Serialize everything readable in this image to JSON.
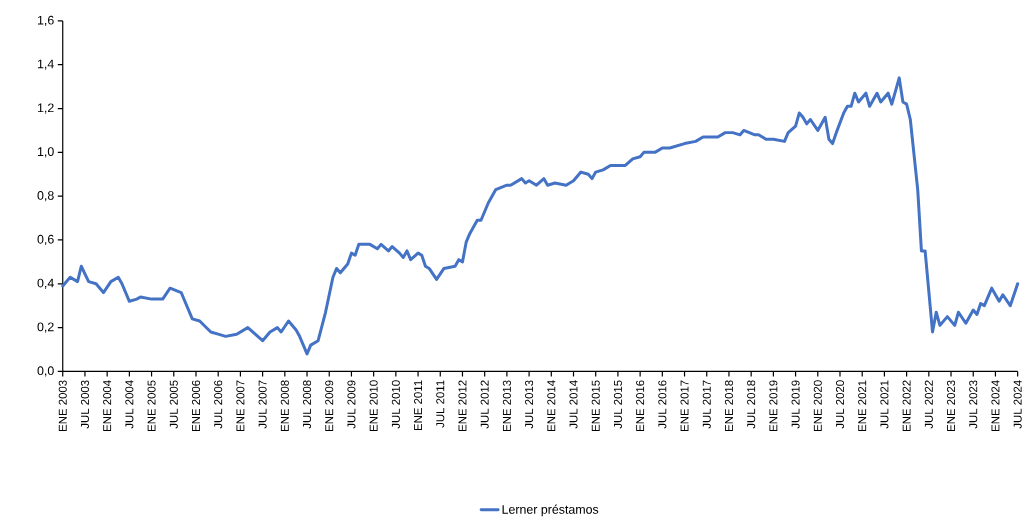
{
  "chart_data": {
    "type": "line",
    "x": [
      "2003-01",
      "2003-03",
      "2003-05",
      "2003-06",
      "2003-08",
      "2003-10",
      "2003-12",
      "2004-02",
      "2004-04",
      "2004-05",
      "2004-07",
      "2004-09",
      "2004-10",
      "2005-01",
      "2005-04",
      "2005-06",
      "2005-09",
      "2005-12",
      "2006-02",
      "2006-05",
      "2006-07",
      "2006-09",
      "2006-12",
      "2007-03",
      "2007-05",
      "2007-07",
      "2007-09",
      "2007-11",
      "2007-12",
      "2008-02",
      "2008-04",
      "2008-05",
      "2008-07",
      "2008-08",
      "2008-10",
      "2008-12",
      "2009-02",
      "2009-03",
      "2009-04",
      "2009-06",
      "2009-07",
      "2009-08",
      "2009-09",
      "2009-12",
      "2010-02",
      "2010-03",
      "2010-05",
      "2010-06",
      "2010-08",
      "2010-09",
      "2010-10",
      "2010-11",
      "2011-01",
      "2011-02",
      "2011-03",
      "2011-04",
      "2011-06",
      "2011-08",
      "2011-11",
      "2011-12",
      "2012-01",
      "2012-02",
      "2012-03",
      "2012-05",
      "2012-06",
      "2012-08",
      "2012-10",
      "2013-01",
      "2013-02",
      "2013-05",
      "2013-06",
      "2013-07",
      "2013-09",
      "2013-11",
      "2013-12",
      "2014-02",
      "2014-05",
      "2014-07",
      "2014-09",
      "2014-11",
      "2014-12",
      "2015-01",
      "2015-03",
      "2015-05",
      "2015-08",
      "2015-09",
      "2015-11",
      "2016-01",
      "2016-02",
      "2016-05",
      "2016-07",
      "2016-09",
      "2017-01",
      "2017-04",
      "2017-06",
      "2017-10",
      "2017-12",
      "2018-02",
      "2018-04",
      "2018-05",
      "2018-08",
      "2018-09",
      "2018-11",
      "2019-01",
      "2019-04",
      "2019-05",
      "2019-07",
      "2019-08",
      "2019-09",
      "2019-10",
      "2019-11",
      "2020-01",
      "2020-03",
      "2020-04",
      "2020-05",
      "2020-06",
      "2020-08",
      "2020-09",
      "2020-10",
      "2020-11",
      "2020-12",
      "2021-02",
      "2021-03",
      "2021-05",
      "2021-06",
      "2021-08",
      "2021-09",
      "2021-11",
      "2021-12",
      "2022-01",
      "2022-02",
      "2022-04",
      "2022-05",
      "2022-06",
      "2022-08",
      "2022-09",
      "2022-10",
      "2022-12",
      "2023-02",
      "2023-03",
      "2023-05",
      "2023-07",
      "2023-08",
      "2023-09",
      "2023-10",
      "2023-12",
      "2024-02",
      "2024-03",
      "2024-05",
      "2024-07"
    ],
    "series": [
      {
        "name": "Lerner préstamos",
        "color": "#4472c4",
        "values": [
          0.39,
          0.43,
          0.41,
          0.48,
          0.41,
          0.4,
          0.36,
          0.41,
          0.43,
          0.4,
          0.32,
          0.33,
          0.34,
          0.33,
          0.33,
          0.38,
          0.36,
          0.24,
          0.23,
          0.18,
          0.17,
          0.16,
          0.17,
          0.2,
          0.17,
          0.14,
          0.18,
          0.2,
          0.18,
          0.23,
          0.19,
          0.16,
          0.08,
          0.12,
          0.14,
          0.27,
          0.43,
          0.47,
          0.45,
          0.49,
          0.54,
          0.53,
          0.58,
          0.58,
          0.56,
          0.58,
          0.55,
          0.57,
          0.54,
          0.52,
          0.55,
          0.51,
          0.54,
          0.53,
          0.48,
          0.47,
          0.42,
          0.47,
          0.48,
          0.51,
          0.5,
          0.59,
          0.63,
          0.69,
          0.69,
          0.77,
          0.83,
          0.85,
          0.85,
          0.88,
          0.86,
          0.87,
          0.85,
          0.88,
          0.85,
          0.86,
          0.85,
          0.87,
          0.91,
          0.9,
          0.88,
          0.91,
          0.92,
          0.94,
          0.94,
          0.94,
          0.97,
          0.98,
          1.0,
          1.0,
          1.02,
          1.02,
          1.04,
          1.05,
          1.07,
          1.07,
          1.09,
          1.09,
          1.08,
          1.1,
          1.08,
          1.08,
          1.06,
          1.06,
          1.05,
          1.09,
          1.12,
          1.18,
          1.16,
          1.13,
          1.15,
          1.1,
          1.16,
          1.06,
          1.04,
          1.09,
          1.18,
          1.21,
          1.21,
          1.27,
          1.23,
          1.27,
          1.21,
          1.27,
          1.23,
          1.27,
          1.22,
          1.34,
          1.23,
          1.22,
          1.15,
          0.83,
          0.55,
          0.55,
          0.18,
          0.27,
          0.21,
          0.25,
          0.21,
          0.27,
          0.22,
          0.28,
          0.26,
          0.31,
          0.3,
          0.38,
          0.32,
          0.35,
          0.3,
          0.4
        ]
      }
    ],
    "xlim": [
      "2003-01",
      "2024-07"
    ],
    "xticks": [
      {
        "value": "2003-01",
        "label": "ENE 2003"
      },
      {
        "value": "2003-07",
        "label": "JUL 2003"
      },
      {
        "value": "2004-01",
        "label": "ENE 2004"
      },
      {
        "value": "2004-07",
        "label": "JUL 2004"
      },
      {
        "value": "2005-01",
        "label": "ENE 2005"
      },
      {
        "value": "2005-07",
        "label": "JUL 2005"
      },
      {
        "value": "2006-01",
        "label": "ENE 2006"
      },
      {
        "value": "2006-07",
        "label": "JUL 2006"
      },
      {
        "value": "2007-01",
        "label": "ENE 2007"
      },
      {
        "value": "2007-07",
        "label": "JUL 2007"
      },
      {
        "value": "2008-01",
        "label": "ENE 2008"
      },
      {
        "value": "2008-07",
        "label": "JUL 2008"
      },
      {
        "value": "2009-01",
        "label": "ENE 2009"
      },
      {
        "value": "2009-07",
        "label": "JUL 2009"
      },
      {
        "value": "2010-01",
        "label": "ENE 2010"
      },
      {
        "value": "2010-07",
        "label": "JUL 2010"
      },
      {
        "value": "2011-01",
        "label": "ENE 2011"
      },
      {
        "value": "2011-07",
        "label": "JUL 2011"
      },
      {
        "value": "2012-01",
        "label": "ENE 2012"
      },
      {
        "value": "2012-07",
        "label": "JUL 2012"
      },
      {
        "value": "2013-01",
        "label": "ENE 2013"
      },
      {
        "value": "2013-07",
        "label": "JUL 2013"
      },
      {
        "value": "2014-01",
        "label": "ENE 2014"
      },
      {
        "value": "2014-07",
        "label": "JUL 2014"
      },
      {
        "value": "2015-01",
        "label": "ENE 2015"
      },
      {
        "value": "2015-07",
        "label": "JUL 2015"
      },
      {
        "value": "2016-01",
        "label": "ENE 2016"
      },
      {
        "value": "2016-07",
        "label": "JUL 2016"
      },
      {
        "value": "2017-01",
        "label": "ENE 2017"
      },
      {
        "value": "2017-07",
        "label": "JUL 2017"
      },
      {
        "value": "2018-01",
        "label": "ENE 2018"
      },
      {
        "value": "2018-07",
        "label": "JUL 2018"
      },
      {
        "value": "2019-01",
        "label": "ENE 2019"
      },
      {
        "value": "2019-07",
        "label": "JUL 2019"
      },
      {
        "value": "2020-01",
        "label": "ENE 2020"
      },
      {
        "value": "2020-07",
        "label": "JUL 2020"
      },
      {
        "value": "2021-01",
        "label": "ENE 2021"
      },
      {
        "value": "2021-07",
        "label": "JUL 2021"
      },
      {
        "value": "2022-01",
        "label": "ENE 2022"
      },
      {
        "value": "2022-07",
        "label": "JUL 2022"
      },
      {
        "value": "2023-01",
        "label": "ENE 2023"
      },
      {
        "value": "2023-07",
        "label": "JUL 2023"
      },
      {
        "value": "2024-01",
        "label": "ENE 2024"
      },
      {
        "value": "2024-07",
        "label": "JUL 2024"
      }
    ],
    "ylim": [
      0,
      1.6
    ],
    "yticks": [
      {
        "value": 0,
        "label": "0,0"
      },
      {
        "value": 0.2,
        "label": "0,2"
      },
      {
        "value": 0.4,
        "label": "0,4"
      },
      {
        "value": 0.6,
        "label": "0,6"
      },
      {
        "value": 0.8,
        "label": "0,8"
      },
      {
        "value": 1.0,
        "label": "1,0"
      },
      {
        "value": 1.2,
        "label": "1,2"
      },
      {
        "value": 1.4,
        "label": "1,4"
      },
      {
        "value": 1.6,
        "label": "1,6"
      }
    ],
    "grid": false,
    "legend": "bottom",
    "marker": "none",
    "line_style": "solid"
  }
}
